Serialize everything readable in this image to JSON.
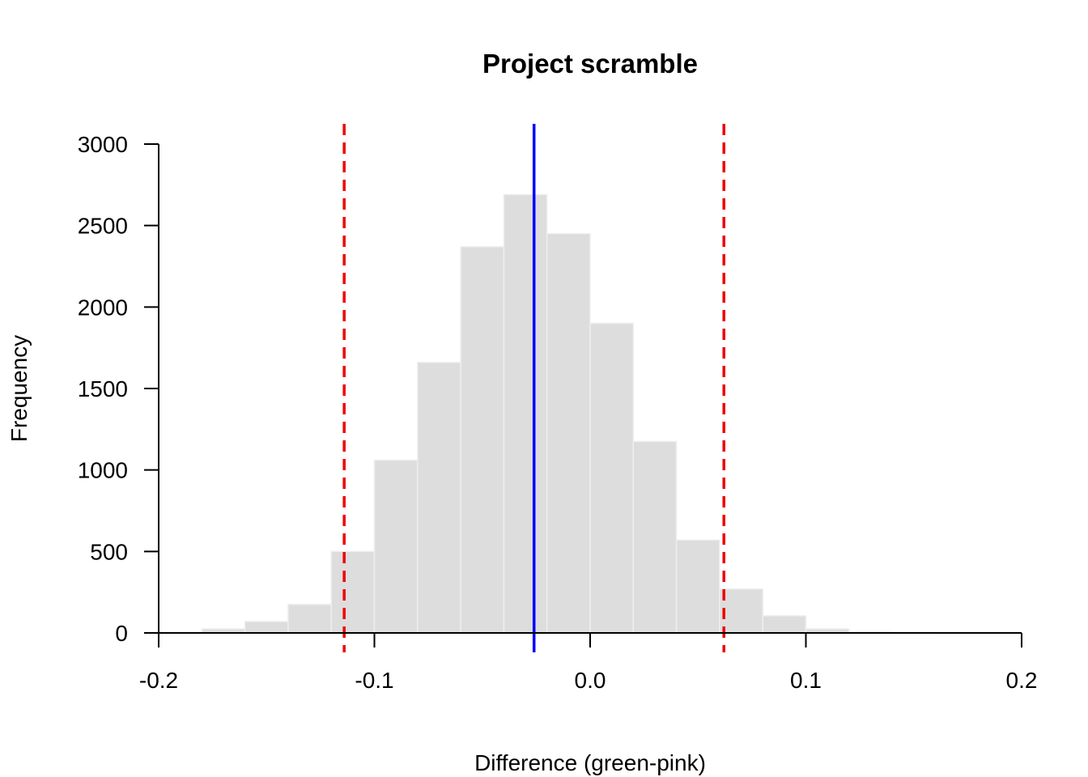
{
  "chart_data": {
    "type": "bar",
    "title": "Project scramble",
    "xlabel": "Difference (green-pink)",
    "ylabel": "Frequency",
    "xlim": [
      -0.2,
      0.2
    ],
    "ylim": [
      0,
      3000
    ],
    "x_ticks": [
      "-0.2",
      "-0.1",
      "0.0",
      "0.1",
      "0.2"
    ],
    "y_ticks": [
      "0",
      "500",
      "1000",
      "1500",
      "2000",
      "2500",
      "3000"
    ],
    "bins": [
      {
        "start": -0.18,
        "end": -0.16,
        "count": 25
      },
      {
        "start": -0.16,
        "end": -0.14,
        "count": 70
      },
      {
        "start": -0.14,
        "end": -0.12,
        "count": 175
      },
      {
        "start": -0.12,
        "end": -0.1,
        "count": 500
      },
      {
        "start": -0.1,
        "end": -0.08,
        "count": 1060
      },
      {
        "start": -0.08,
        "end": -0.06,
        "count": 1660
      },
      {
        "start": -0.06,
        "end": -0.04,
        "count": 2370
      },
      {
        "start": -0.04,
        "end": -0.02,
        "count": 2690
      },
      {
        "start": -0.02,
        "end": 0.0,
        "count": 2450
      },
      {
        "start": 0.0,
        "end": 0.02,
        "count": 1900
      },
      {
        "start": 0.02,
        "end": 0.04,
        "count": 1175
      },
      {
        "start": 0.04,
        "end": 0.06,
        "count": 570
      },
      {
        "start": 0.06,
        "end": 0.08,
        "count": 270
      },
      {
        "start": 0.08,
        "end": 0.1,
        "count": 105
      },
      {
        "start": 0.1,
        "end": 0.12,
        "count": 25
      },
      {
        "start": 0.12,
        "end": 0.14,
        "count": 8
      },
      {
        "start": 0.14,
        "end": 0.16,
        "count": 3
      }
    ],
    "observed_line": {
      "x": -0.026,
      "color": "#0000ff",
      "style": "solid"
    },
    "interval_lines": [
      {
        "x": -0.114,
        "color": "#ee0000",
        "style": "dashed"
      },
      {
        "x": 0.062,
        "color": "#ee0000",
        "style": "dashed"
      }
    ],
    "bar_color": "#dddddd",
    "bar_border_color": "#eeeeee",
    "grid": false,
    "legend": "none"
  }
}
